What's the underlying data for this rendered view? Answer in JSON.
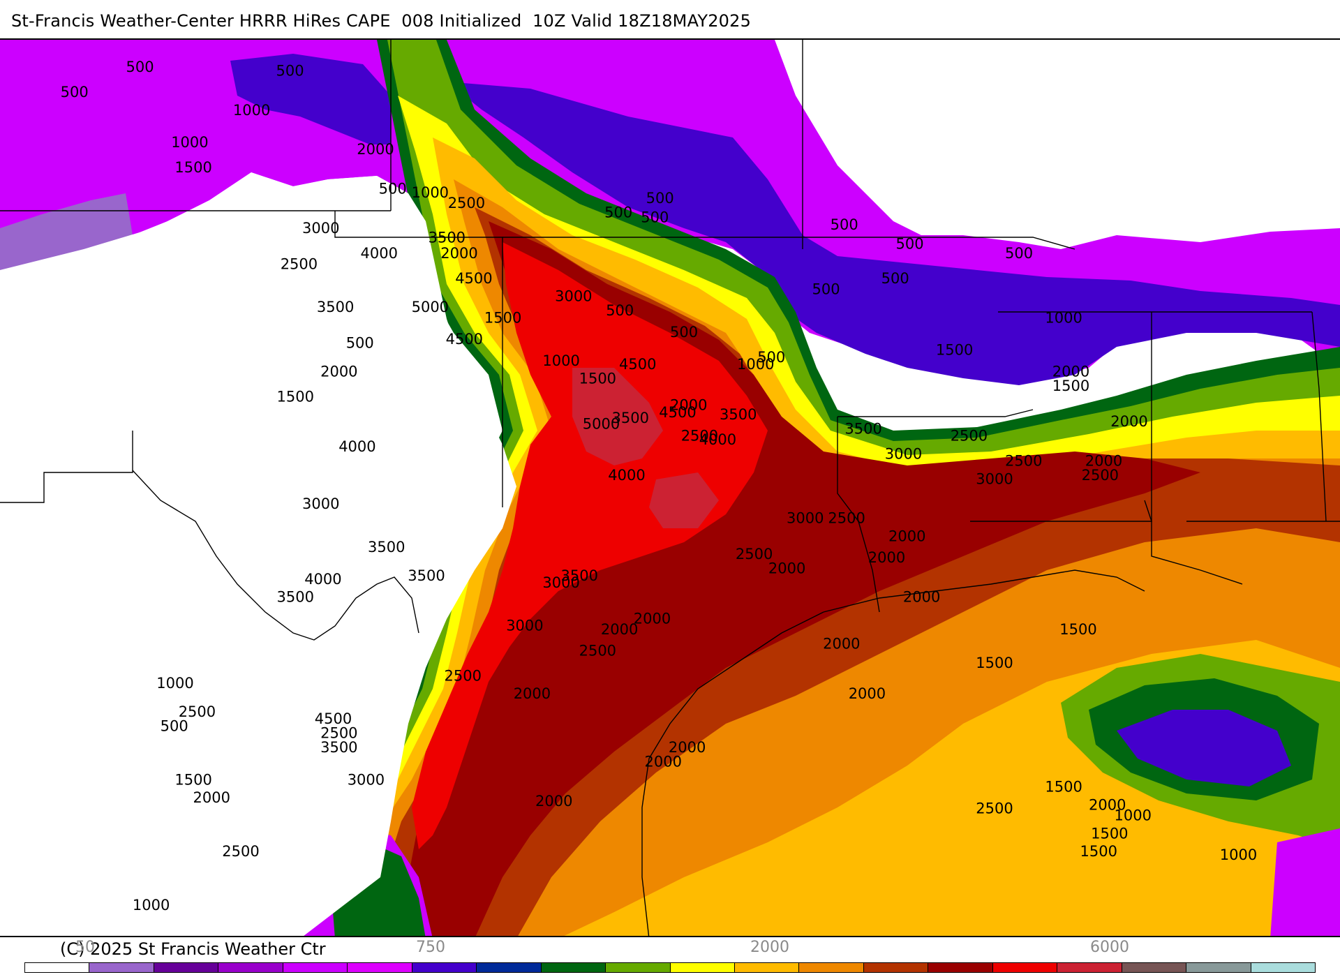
{
  "title": "St-Francis Weather-Center HRRR HiRes CAPE  008 Initialized  10Z Valid 18Z18MAY2025",
  "copyright": "(C) 2025 St Francis Weather Ctr",
  "colorbar": {
    "tick_labels": [
      "50",
      "750",
      "2000",
      "6000"
    ],
    "colors": [
      "#ffffff",
      "#9966cc",
      "#660099",
      "#9900cc",
      "#cc00ff",
      "#dd00ff",
      "#4400cc",
      "#002a99",
      "#006611",
      "#66aa00",
      "#ffff00",
      "#ffbb00",
      "#ee8800",
      "#b33300",
      "#990000",
      "#ee0000",
      "#cc2233",
      "#775555",
      "#889999",
      "#aadddd"
    ]
  },
  "map": {
    "product": "CAPE",
    "contour_labels": [
      {
        "text": "500",
        "lon": -104.67,
        "lat": 41.4
      },
      {
        "text": "500",
        "lon": -102.61,
        "lat": 41.35
      },
      {
        "text": "500",
        "lon": -105.57,
        "lat": 41.05
      },
      {
        "text": "500",
        "lon": -101.2,
        "lat": 39.7
      },
      {
        "text": "500",
        "lon": -98.1,
        "lat": 39.37
      },
      {
        "text": "500",
        "lon": -97.53,
        "lat": 39.57
      },
      {
        "text": "500",
        "lon": -97.6,
        "lat": 39.3
      },
      {
        "text": "500",
        "lon": -95.0,
        "lat": 39.2
      },
      {
        "text": "500",
        "lon": -94.1,
        "lat": 38.93
      },
      {
        "text": "500",
        "lon": -94.3,
        "lat": 38.45
      },
      {
        "text": "500",
        "lon": -92.6,
        "lat": 38.8
      },
      {
        "text": "500",
        "lon": -95.25,
        "lat": 38.3
      },
      {
        "text": "500",
        "lon": -98.08,
        "lat": 38.0
      },
      {
        "text": "500",
        "lon": -97.2,
        "lat": 37.7
      },
      {
        "text": "500",
        "lon": -96.0,
        "lat": 37.35
      },
      {
        "text": "500",
        "lon": -101.65,
        "lat": 37.55
      },
      {
        "text": "500",
        "lon": -104.2,
        "lat": 32.2
      },
      {
        "text": "1000",
        "lon": -103.2,
        "lat": 40.8
      },
      {
        "text": "1000",
        "lon": -104.05,
        "lat": 40.35
      },
      {
        "text": "1000",
        "lon": -100.75,
        "lat": 39.65
      },
      {
        "text": "1000",
        "lon": -98.95,
        "lat": 37.3
      },
      {
        "text": "1000",
        "lon": -96.28,
        "lat": 37.25
      },
      {
        "text": "1000",
        "lon": -92.05,
        "lat": 37.9
      },
      {
        "text": "1000",
        "lon": -104.25,
        "lat": 32.8
      },
      {
        "text": "1000",
        "lon": -91.1,
        "lat": 30.95
      },
      {
        "text": "1000",
        "lon": -89.65,
        "lat": 30.4
      },
      {
        "text": "1000",
        "lon": -104.58,
        "lat": 29.7
      },
      {
        "text": "1500",
        "lon": -104.0,
        "lat": 40.0
      },
      {
        "text": "1500",
        "lon": -99.75,
        "lat": 37.9
      },
      {
        "text": "1500",
        "lon": -98.45,
        "lat": 37.05
      },
      {
        "text": "1500",
        "lon": -102.6,
        "lat": 36.8
      },
      {
        "text": "1500",
        "lon": -93.55,
        "lat": 37.45
      },
      {
        "text": "1500",
        "lon": -91.95,
        "lat": 36.95
      },
      {
        "text": "1500",
        "lon": -91.85,
        "lat": 33.55
      },
      {
        "text": "1500",
        "lon": -93.0,
        "lat": 33.08
      },
      {
        "text": "1500",
        "lon": -104.0,
        "lat": 31.45
      },
      {
        "text": "1500",
        "lon": -92.05,
        "lat": 31.35
      },
      {
        "text": "1500",
        "lon": -91.42,
        "lat": 30.7
      },
      {
        "text": "1500",
        "lon": -91.57,
        "lat": 30.45
      },
      {
        "text": "2000",
        "lon": -101.5,
        "lat": 40.25
      },
      {
        "text": "2000",
        "lon": -102.0,
        "lat": 37.15
      },
      {
        "text": "2000",
        "lon": -100.35,
        "lat": 38.8
      },
      {
        "text": "2000",
        "lon": -97.2,
        "lat": 36.68
      },
      {
        "text": "2000",
        "lon": -91.95,
        "lat": 37.15
      },
      {
        "text": "2000",
        "lon": -91.15,
        "lat": 36.45
      },
      {
        "text": "2000",
        "lon": -91.5,
        "lat": 35.9
      },
      {
        "text": "2000",
        "lon": -94.2,
        "lat": 34.85
      },
      {
        "text": "2000",
        "lon": -94.48,
        "lat": 34.55
      },
      {
        "text": "2000",
        "lon": -95.85,
        "lat": 34.4
      },
      {
        "text": "2000",
        "lon": -94.0,
        "lat": 34.0
      },
      {
        "text": "2000",
        "lon": -95.1,
        "lat": 33.35
      },
      {
        "text": "2000",
        "lon": -97.7,
        "lat": 33.7
      },
      {
        "text": "2000",
        "lon": -98.15,
        "lat": 33.55
      },
      {
        "text": "2000",
        "lon": -99.35,
        "lat": 32.65
      },
      {
        "text": "2000",
        "lon": -94.75,
        "lat": 32.65
      },
      {
        "text": "2000",
        "lon": -97.22,
        "lat": 31.9
      },
      {
        "text": "2000",
        "lon": -97.55,
        "lat": 31.7
      },
      {
        "text": "2000",
        "lon": -99.05,
        "lat": 31.15
      },
      {
        "text": "2000",
        "lon": -103.75,
        "lat": 31.2
      },
      {
        "text": "2000",
        "lon": -91.45,
        "lat": 31.1
      },
      {
        "text": "2500",
        "lon": -100.25,
        "lat": 39.5
      },
      {
        "text": "2500",
        "lon": -102.55,
        "lat": 38.65
      },
      {
        "text": "2500",
        "lon": -97.05,
        "lat": 36.25
      },
      {
        "text": "2500",
        "lon": -93.35,
        "lat": 36.25
      },
      {
        "text": "2500",
        "lon": -91.55,
        "lat": 35.7
      },
      {
        "text": "2500",
        "lon": -92.6,
        "lat": 35.9
      },
      {
        "text": "2500",
        "lon": -95.03,
        "lat": 35.1
      },
      {
        "text": "2500",
        "lon": -96.3,
        "lat": 34.6
      },
      {
        "text": "2500",
        "lon": -98.45,
        "lat": 33.25
      },
      {
        "text": "2500",
        "lon": -100.3,
        "lat": 32.9
      },
      {
        "text": "2500",
        "lon": -103.95,
        "lat": 32.4
      },
      {
        "text": "2500",
        "lon": -102.0,
        "lat": 32.1
      },
      {
        "text": "2500",
        "lon": -93.0,
        "lat": 31.05
      },
      {
        "text": "2500",
        "lon": -103.35,
        "lat": 30.45
      },
      {
        "text": "3000",
        "lon": -102.25,
        "lat": 39.15
      },
      {
        "text": "3000",
        "lon": -98.78,
        "lat": 38.2
      },
      {
        "text": "3000",
        "lon": -94.25,
        "lat": 36.0
      },
      {
        "text": "3000",
        "lon": -93.0,
        "lat": 35.65
      },
      {
        "text": "3000",
        "lon": -95.6,
        "lat": 35.1
      },
      {
        "text": "3000",
        "lon": -102.25,
        "lat": 35.3
      },
      {
        "text": "3000",
        "lon": -98.95,
        "lat": 34.2
      },
      {
        "text": "3000",
        "lon": -99.45,
        "lat": 33.6
      },
      {
        "text": "3000",
        "lon": -101.63,
        "lat": 31.45
      },
      {
        "text": "3500",
        "lon": -100.52,
        "lat": 39.02
      },
      {
        "text": "3500",
        "lon": -102.05,
        "lat": 38.05
      },
      {
        "text": "3500",
        "lon": -96.52,
        "lat": 36.55
      },
      {
        "text": "3500",
        "lon": -98.0,
        "lat": 36.5
      },
      {
        "text": "3500",
        "lon": -94.8,
        "lat": 36.35
      },
      {
        "text": "3500",
        "lon": -101.35,
        "lat": 34.7
      },
      {
        "text": "3500",
        "lon": -100.8,
        "lat": 34.3
      },
      {
        "text": "3500",
        "lon": -98.7,
        "lat": 34.3
      },
      {
        "text": "3500",
        "lon": -102.6,
        "lat": 34.0
      },
      {
        "text": "3500",
        "lon": -102.0,
        "lat": 31.9
      },
      {
        "text": "4000",
        "lon": -101.45,
        "lat": 38.8
      },
      {
        "text": "4000",
        "lon": -101.75,
        "lat": 36.1
      },
      {
        "text": "4000",
        "lon": -98.05,
        "lat": 35.7
      },
      {
        "text": "4000",
        "lon": -96.8,
        "lat": 36.2
      },
      {
        "text": "4000",
        "lon": -102.22,
        "lat": 34.25
      },
      {
        "text": "4500",
        "lon": -100.15,
        "lat": 38.45
      },
      {
        "text": "4500",
        "lon": -100.28,
        "lat": 37.6
      },
      {
        "text": "4500",
        "lon": -97.9,
        "lat": 37.25
      },
      {
        "text": "4500",
        "lon": -97.35,
        "lat": 36.58
      },
      {
        "text": "4500",
        "lon": -102.08,
        "lat": 32.3
      },
      {
        "text": "5000",
        "lon": -100.75,
        "lat": 38.05
      },
      {
        "text": "5000",
        "lon": -98.4,
        "lat": 36.42
      }
    ]
  }
}
